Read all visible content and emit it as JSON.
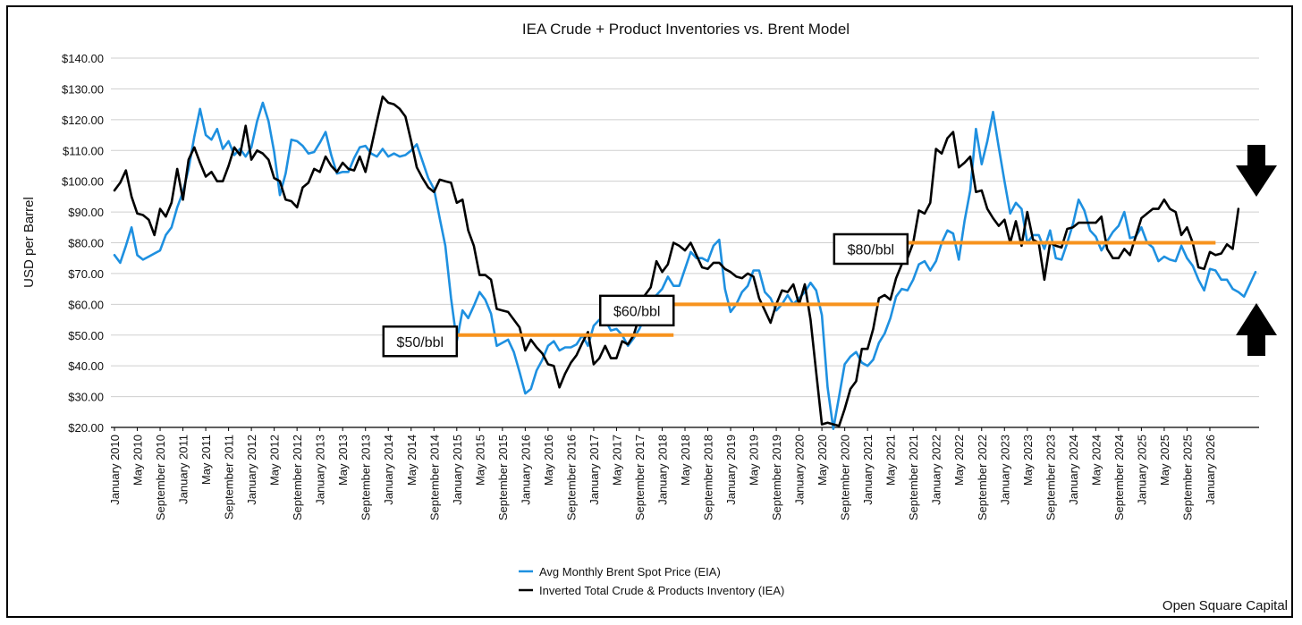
{
  "chart_data": {
    "type": "line",
    "title": "IEA Crude + Product Inventories vs. Brent Model",
    "ylabel": "USD per Barrel",
    "xlabel": "",
    "ylim": [
      20,
      140
    ],
    "yticks": [
      "$20.00",
      "$30.00",
      "$40.00",
      "$50.00",
      "$60.00",
      "$70.00",
      "$80.00",
      "$90.00",
      "$100.00",
      "$110.00",
      "$120.00",
      "$130.00",
      "$140.00"
    ],
    "xticks": [
      "January 2010",
      "May 2010",
      "September 2010",
      "January 2011",
      "May 2011",
      "September 2011",
      "January 2012",
      "May 2012",
      "September 2012",
      "January 2013",
      "May 2013",
      "September 2013",
      "January 2014",
      "May 2014",
      "September 2014",
      "January 2015",
      "May 2015",
      "September 2015",
      "January 2016",
      "May 2016",
      "September 2016",
      "January 2017",
      "May 2017",
      "September 2017",
      "January 2018",
      "May 2018",
      "September 2018",
      "January 2019",
      "May 2019",
      "September 2019",
      "January 2020",
      "May 2020",
      "September 2020",
      "January 2021",
      "May 2021",
      "September 2021",
      "January 2022",
      "May 2022",
      "September 2022",
      "January 2023",
      "May 2023",
      "September 2023",
      "January 2024",
      "May 2024",
      "September 2024",
      "January 2025",
      "May 2025",
      "September 2025",
      "January 2026"
    ],
    "grid": true,
    "legend_position": "bottom-center",
    "series": [
      {
        "name": "Avg Monthly Brent Spot Price (EIA)",
        "color": "#1e90e0",
        "x_start": "January 2010",
        "values": [
          76,
          73.5,
          79,
          85,
          76,
          74.5,
          75.5,
          76.5,
          77.5,
          82.5,
          85,
          91.5,
          96.5,
          104,
          114.5,
          123.5,
          115,
          113.5,
          117,
          110.5,
          113,
          108.5,
          110.5,
          108,
          111,
          119.5,
          125.5,
          119.5,
          109.5,
          95.5,
          102.5,
          113.5,
          113,
          111.5,
          109,
          109.5,
          112.5,
          116,
          108.5,
          102.5,
          103,
          103,
          107.5,
          111,
          111.5,
          109,
          108,
          110.5,
          108,
          109,
          108,
          108.5,
          110,
          112,
          106.5,
          101,
          97.5,
          88,
          79,
          62,
          48,
          58,
          55.5,
          59.5,
          64,
          61.5,
          57,
          46.5,
          47.5,
          48.5,
          44.5,
          38,
          31,
          32.5,
          38.5,
          42,
          46.5,
          48,
          45,
          46,
          46,
          47,
          50,
          46.5,
          53,
          55,
          55,
          51.5,
          52,
          50,
          46.5,
          49,
          52,
          56,
          61.5,
          63,
          65,
          69,
          66,
          66,
          71.5,
          77,
          75,
          75,
          74,
          79,
          81,
          65,
          57.5,
          60,
          64,
          66,
          71,
          71,
          64,
          62,
          58,
          60,
          63,
          60,
          62,
          64,
          67,
          64.5,
          56.5,
          33,
          19.5,
          30,
          40.5,
          43,
          44.5,
          41,
          40,
          42,
          47.5,
          50.5,
          55.5,
          62.5,
          65,
          64.5,
          68,
          73,
          74,
          71,
          74,
          80,
          84,
          83,
          74.5,
          87,
          97,
          117,
          105.5,
          113,
          122.5,
          111,
          100,
          89.5,
          93,
          91,
          80,
          82.5,
          82.5,
          78,
          84,
          75,
          74.5,
          80,
          86,
          94,
          90.5,
          84,
          82,
          77.5,
          80.5,
          83.5,
          85.5,
          90,
          81.5,
          82,
          85,
          80,
          78.5,
          74,
          75.5,
          74.5,
          74,
          79,
          75,
          72.5,
          68,
          64.5,
          71.5,
          71,
          68,
          68,
          65,
          64,
          62.5,
          66.5,
          70.5
        ]
      },
      {
        "name": "Inverted Total Crude & Products Inventory (IEA)",
        "color": "#000000",
        "x_start": "January 2010",
        "values": [
          97,
          99.5,
          103.5,
          95,
          89.5,
          89,
          87.5,
          82.5,
          91,
          88.5,
          93,
          104,
          94,
          107,
          111,
          106,
          101.5,
          103,
          100,
          100,
          105,
          111,
          108.5,
          118,
          107,
          110,
          109,
          107,
          101,
          100,
          94,
          93.5,
          91.5,
          98,
          99.5,
          104,
          103,
          108,
          105,
          103,
          106,
          104,
          103.5,
          108,
          103,
          111,
          119.5,
          127.5,
          125.5,
          125,
          123.5,
          121,
          113,
          104.5,
          101,
          98,
          96.5,
          100.5,
          100,
          99.5,
          93,
          94,
          84,
          79,
          69.5,
          69.5,
          68,
          58.5,
          58,
          57.5,
          55,
          52.5,
          45,
          48.5,
          46,
          44,
          40.5,
          40,
          33,
          37.5,
          41,
          43.5,
          47.5,
          51,
          40.5,
          42.5,
          46.5,
          42.5,
          42.5,
          48,
          47,
          50,
          56,
          63,
          65.5,
          74,
          70.5,
          73,
          80,
          79,
          77.5,
          80,
          76,
          72,
          71.5,
          73.5,
          73.5,
          71.5,
          70.5,
          69,
          68.5,
          70,
          69,
          62,
          58,
          54,
          60,
          64.5,
          64,
          66.5,
          60,
          66.5,
          55,
          38,
          21,
          21.5,
          21,
          20.5,
          26,
          32.5,
          35,
          45.5,
          45.5,
          52,
          62,
          63,
          61.5,
          68.5,
          73,
          75,
          80,
          90.5,
          89.5,
          93,
          110.5,
          109,
          114,
          116,
          104.5,
          106,
          108,
          96.5,
          97,
          91,
          88,
          85.5,
          87.5,
          80,
          87,
          79,
          90,
          81,
          80,
          68,
          80,
          79,
          78.5,
          84.5,
          85,
          86.5,
          86.5,
          86.5,
          86.5,
          88.5,
          78,
          75,
          75,
          78,
          76,
          82,
          88,
          89.5,
          91,
          91,
          94,
          91,
          90,
          82.5,
          85,
          80,
          72,
          71.5,
          77,
          76,
          76.5,
          79.5,
          78,
          91
        ]
      }
    ],
    "annotations": [
      {
        "label": "$50/bbl",
        "level": 50,
        "from": "January 2015",
        "to": "March 2018",
        "color": "#f7931e"
      },
      {
        "label": "$60/bbl",
        "level": 60,
        "from": "March 2018",
        "to": "March 2021",
        "color": "#f7931e"
      },
      {
        "label": "$80/bbl",
        "level": 80,
        "from": "August 2021",
        "to": "February 2026",
        "color": "#f7931e"
      }
    ],
    "arrows": [
      {
        "direction": "down",
        "name": "down-arrow-icon"
      },
      {
        "direction": "up",
        "name": "up-arrow-icon"
      }
    ],
    "source_note": "Open Square Capital"
  }
}
